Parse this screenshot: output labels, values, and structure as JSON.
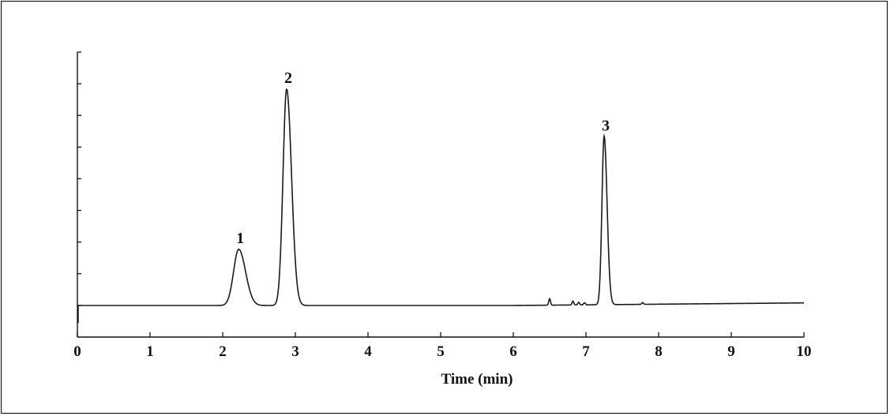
{
  "chart_data": {
    "type": "line",
    "title": "",
    "xlabel": "Time (min)",
    "ylabel": "",
    "xlim": [
      0,
      10
    ],
    "ylim": [
      -0.15,
      1.3
    ],
    "x_ticks": [
      "0",
      "1",
      "2",
      "3",
      "4",
      "5",
      "6",
      "7",
      "8",
      "9",
      "10"
    ],
    "y_minor_ticks": 9,
    "grid": false,
    "legend": "none",
    "line_color": "#1a1a1a",
    "peaks": [
      {
        "label": "1",
        "time": 2.22,
        "height": 0.26,
        "width": 0.07
      },
      {
        "label": "2",
        "time": 2.88,
        "height": 1.0,
        "width": 0.05
      },
      {
        "label": "3",
        "time": 7.25,
        "height": 0.78,
        "width": 0.03
      }
    ],
    "baseline": [
      {
        "time": 0.0,
        "value": 0.0
      },
      {
        "time": 6.0,
        "value": 0.0
      },
      {
        "time": 10.0,
        "value": 0.012
      }
    ],
    "minor_peaks": [
      {
        "time": 6.5,
        "height": 0.03
      },
      {
        "time": 6.82,
        "height": 0.018
      },
      {
        "time": 6.9,
        "height": 0.012
      },
      {
        "time": 6.98,
        "height": 0.01
      },
      {
        "time": 7.78,
        "height": 0.008
      }
    ]
  }
}
